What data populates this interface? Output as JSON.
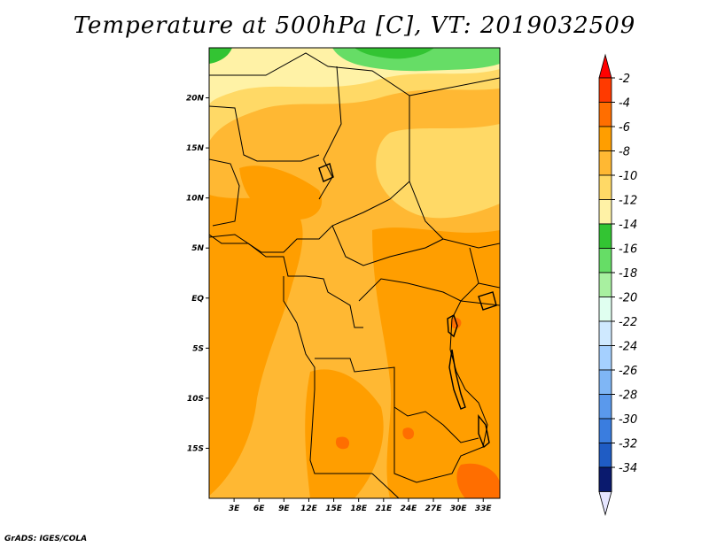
{
  "title": "Temperature at 500hPa [C], VT: 2019032509",
  "footer": "GrADS: IGES/COLA",
  "map": {
    "lon_range": [
      0,
      35
    ],
    "lat_range": [
      -20,
      25
    ],
    "lon_ticks": [
      "3E",
      "6E",
      "9E",
      "12E",
      "15E",
      "18E",
      "21E",
      "24E",
      "27E",
      "30E",
      "33E"
    ],
    "lat_ticks": [
      "20N",
      "15N",
      "10N",
      "5N",
      "EQ",
      "5S",
      "10S",
      "15S"
    ]
  },
  "colorbar": {
    "labels": [
      "-2",
      "-4",
      "-6",
      "-8",
      "-10",
      "-12",
      "-14",
      "-16",
      "-18",
      "-20",
      "-22",
      "-24",
      "-26",
      "-28",
      "-30",
      "-32",
      "-34"
    ],
    "colors": [
      "#ff3a00",
      "#ff6e00",
      "#ff9e00",
      "#ffb833",
      "#ffd966",
      "#fff2a6",
      "#33c433",
      "#66dd66",
      "#a8f0a0",
      "#e0fff0",
      "#cfe9ff",
      "#a5d0ff",
      "#7fb6f5",
      "#5a99ec",
      "#3a7ddf",
      "#1f5cc4",
      "#0f35a0"
    ],
    "top_arrow_color": "#ff0000",
    "bottom_arrow_color": "#e6e6ff",
    "bottom_block_color": "#0a1a6e"
  }
}
